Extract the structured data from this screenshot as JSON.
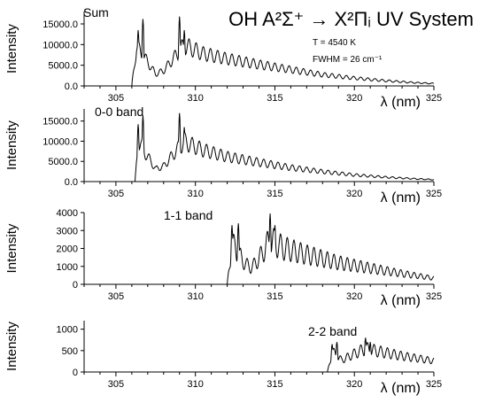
{
  "figure": {
    "title": "OH  A²Σ⁺ → X²Πᵢ UV System",
    "annotations": [
      "T = 4540 K",
      "FWHM = 26 cm⁻¹"
    ]
  },
  "chart_data": [
    {
      "type": "line",
      "panel_label": "Sum",
      "ylabel": "Intensity",
      "xlabel": "λ (nm)",
      "xlim": [
        303,
        325
      ],
      "ylim": [
        0,
        18000
      ],
      "x_ticks": [
        305,
        310,
        315,
        320,
        325
      ],
      "y_ticks": [
        0,
        5000,
        10000,
        15000
      ],
      "y_tick_labels": [
        "0.0",
        "5000.0",
        "10000.0",
        "15000.0"
      ],
      "series": [
        {
          "bands": [
            {
              "start": 306.0,
              "heads": [
                [
                  306.4,
                  13500
                ],
                [
                  306.7,
                  16200
                ],
                [
                  309.0,
                  16800
                ],
                [
                  309.3,
                  13500
                ]
              ],
              "envelope": [
                [
                  306.0,
                  400
                ],
                [
                  306.3,
                  11500
                ],
                [
                  307.0,
                  7000
                ],
                [
                  307.5,
                  3500
                ],
                [
                  308.0,
                  4500
                ],
                [
                  308.6,
                  8000
                ],
                [
                  309.3,
                  12000
                ],
                [
                  310.5,
                  9500
                ],
                [
                  312.0,
                  8000
                ],
                [
                  314.0,
                  6300
                ],
                [
                  316.0,
                  4800
                ],
                [
                  318.0,
                  3300
                ],
                [
                  320.0,
                  2300
                ],
                [
                  322.0,
                  1500
                ],
                [
                  324.0,
                  900
                ],
                [
                  325.0,
                  700
                ]
              ],
              "ripple": {
                "period": 0.45,
                "amp": 0.18
              }
            }
          ]
        }
      ]
    },
    {
      "type": "line",
      "panel_label": "0-0 band",
      "ylabel": "Intensity",
      "xlabel": "λ (nm)",
      "xlim": [
        303,
        325
      ],
      "ylim": [
        0,
        18000
      ],
      "x_ticks": [
        305,
        310,
        315,
        320,
        325
      ],
      "y_ticks": [
        0,
        5000,
        10000,
        15000
      ],
      "y_tick_labels": [
        "0.0",
        "5000.0",
        "10000.0",
        "15000.0"
      ],
      "series": [
        {
          "bands": [
            {
              "start": 306.2,
              "heads": [
                [
                  306.4,
                  14200
                ],
                [
                  306.7,
                  16400
                ],
                [
                  309.0,
                  17000
                ],
                [
                  309.3,
                  13500
                ]
              ],
              "envelope": [
                [
                  306.2,
                  0
                ],
                [
                  306.4,
                  12000
                ],
                [
                  307.0,
                  7500
                ],
                [
                  307.5,
                  3800
                ],
                [
                  308.0,
                  4600
                ],
                [
                  308.6,
                  8200
                ],
                [
                  309.3,
                  12000
                ],
                [
                  310.5,
                  9500
                ],
                [
                  312.0,
                  7500
                ],
                [
                  314.0,
                  5800
                ],
                [
                  316.0,
                  4200
                ],
                [
                  318.0,
                  3000
                ],
                [
                  320.0,
                  2000
                ],
                [
                  322.0,
                  1300
                ],
                [
                  324.0,
                  800
                ],
                [
                  325.0,
                  600
                ]
              ],
              "ripple": {
                "period": 0.45,
                "amp": 0.18
              }
            }
          ]
        }
      ]
    },
    {
      "type": "line",
      "panel_label": "1-1 band",
      "ylabel": "Intensity",
      "xlabel": "λ (nm)",
      "xlim": [
        303,
        325
      ],
      "ylim": [
        0,
        4000
      ],
      "x_ticks": [
        305,
        310,
        315,
        320,
        325
      ],
      "y_ticks": [
        0,
        1000,
        2000,
        3000,
        4000
      ],
      "y_tick_labels": [
        "0",
        "1000",
        "2000",
        "3000",
        "4000"
      ],
      "series": [
        {
          "bands": [
            {
              "start": 312.0,
              "heads": [
                [
                  312.3,
                  3300
                ],
                [
                  312.7,
                  3400
                ],
                [
                  314.7,
                  3950
                ],
                [
                  315.0,
                  3300
                ]
              ],
              "envelope": [
                [
                  312.0,
                  0
                ],
                [
                  312.3,
                  3000
                ],
                [
                  313.0,
                  1700
                ],
                [
                  313.5,
                  1200
                ],
                [
                  314.0,
                  1900
                ],
                [
                  314.7,
                  3300
                ],
                [
                  315.5,
                  2700
                ],
                [
                  317.0,
                  2200
                ],
                [
                  319.0,
                  1600
                ],
                [
                  321.0,
                  1200
                ],
                [
                  323.0,
                  800
                ],
                [
                  325.0,
                  450
                ]
              ],
              "ripple": {
                "period": 0.42,
                "amp": 0.25
              }
            }
          ]
        }
      ]
    },
    {
      "type": "line",
      "panel_label": "2-2 band",
      "ylabel": "Intensity",
      "xlabel": "λ (nm)",
      "xlim": [
        303,
        325
      ],
      "ylim": [
        0,
        1200
      ],
      "x_ticks": [
        305,
        310,
        315,
        320,
        325
      ],
      "y_ticks": [
        0,
        500,
        1000
      ],
      "y_tick_labels": [
        "0",
        "500",
        "1000"
      ],
      "series": [
        {
          "bands": [
            {
              "start": 318.3,
              "heads": [
                [
                  318.6,
                  650
                ],
                [
                  318.9,
                  700
                ],
                [
                  320.7,
                  800
                ],
                [
                  321.0,
                  700
                ]
              ],
              "envelope": [
                [
                  318.3,
                  0
                ],
                [
                  318.6,
                  600
                ],
                [
                  319.2,
                  350
                ],
                [
                  319.8,
                  500
                ],
                [
                  320.7,
                  700
                ],
                [
                  321.5,
                  620
                ],
                [
                  323.0,
                  480
                ],
                [
                  325.0,
                  330
                ]
              ],
              "ripple": {
                "period": 0.42,
                "amp": 0.22
              }
            }
          ]
        }
      ]
    }
  ]
}
